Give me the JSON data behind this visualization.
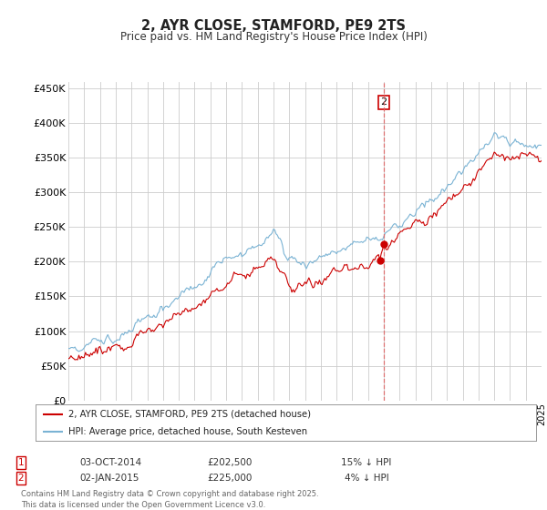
{
  "title": "2, AYR CLOSE, STAMFORD, PE9 2TS",
  "subtitle": "Price paid vs. HM Land Registry's House Price Index (HPI)",
  "ylim": [
    0,
    460000
  ],
  "yticks": [
    0,
    50000,
    100000,
    150000,
    200000,
    250000,
    300000,
    350000,
    400000,
    450000
  ],
  "ytick_labels": [
    "£0",
    "£50K",
    "£100K",
    "£150K",
    "£200K",
    "£250K",
    "£300K",
    "£350K",
    "£400K",
    "£450K"
  ],
  "hpi_color": "#7ab3d4",
  "price_color": "#cc0000",
  "vline_color": "#e06060",
  "transaction1_date_idx": 237,
  "transaction1_price": 202500,
  "transaction1_date_str": "03-OCT-2014",
  "transaction1_pct": "15% ↓ HPI",
  "transaction2_date_idx": 240,
  "transaction2_price": 225000,
  "transaction2_date_str": "02-JAN-2015",
  "transaction2_pct": "4% ↓ HPI",
  "legend_line1": "2, AYR CLOSE, STAMFORD, PE9 2TS (detached house)",
  "legend_line2": "HPI: Average price, detached house, South Kesteven",
  "footer": "Contains HM Land Registry data © Crown copyright and database right 2025.\nThis data is licensed under the Open Government Licence v3.0.",
  "background_color": "#ffffff",
  "grid_color": "#cccccc",
  "start_year": 1995,
  "num_months": 361
}
